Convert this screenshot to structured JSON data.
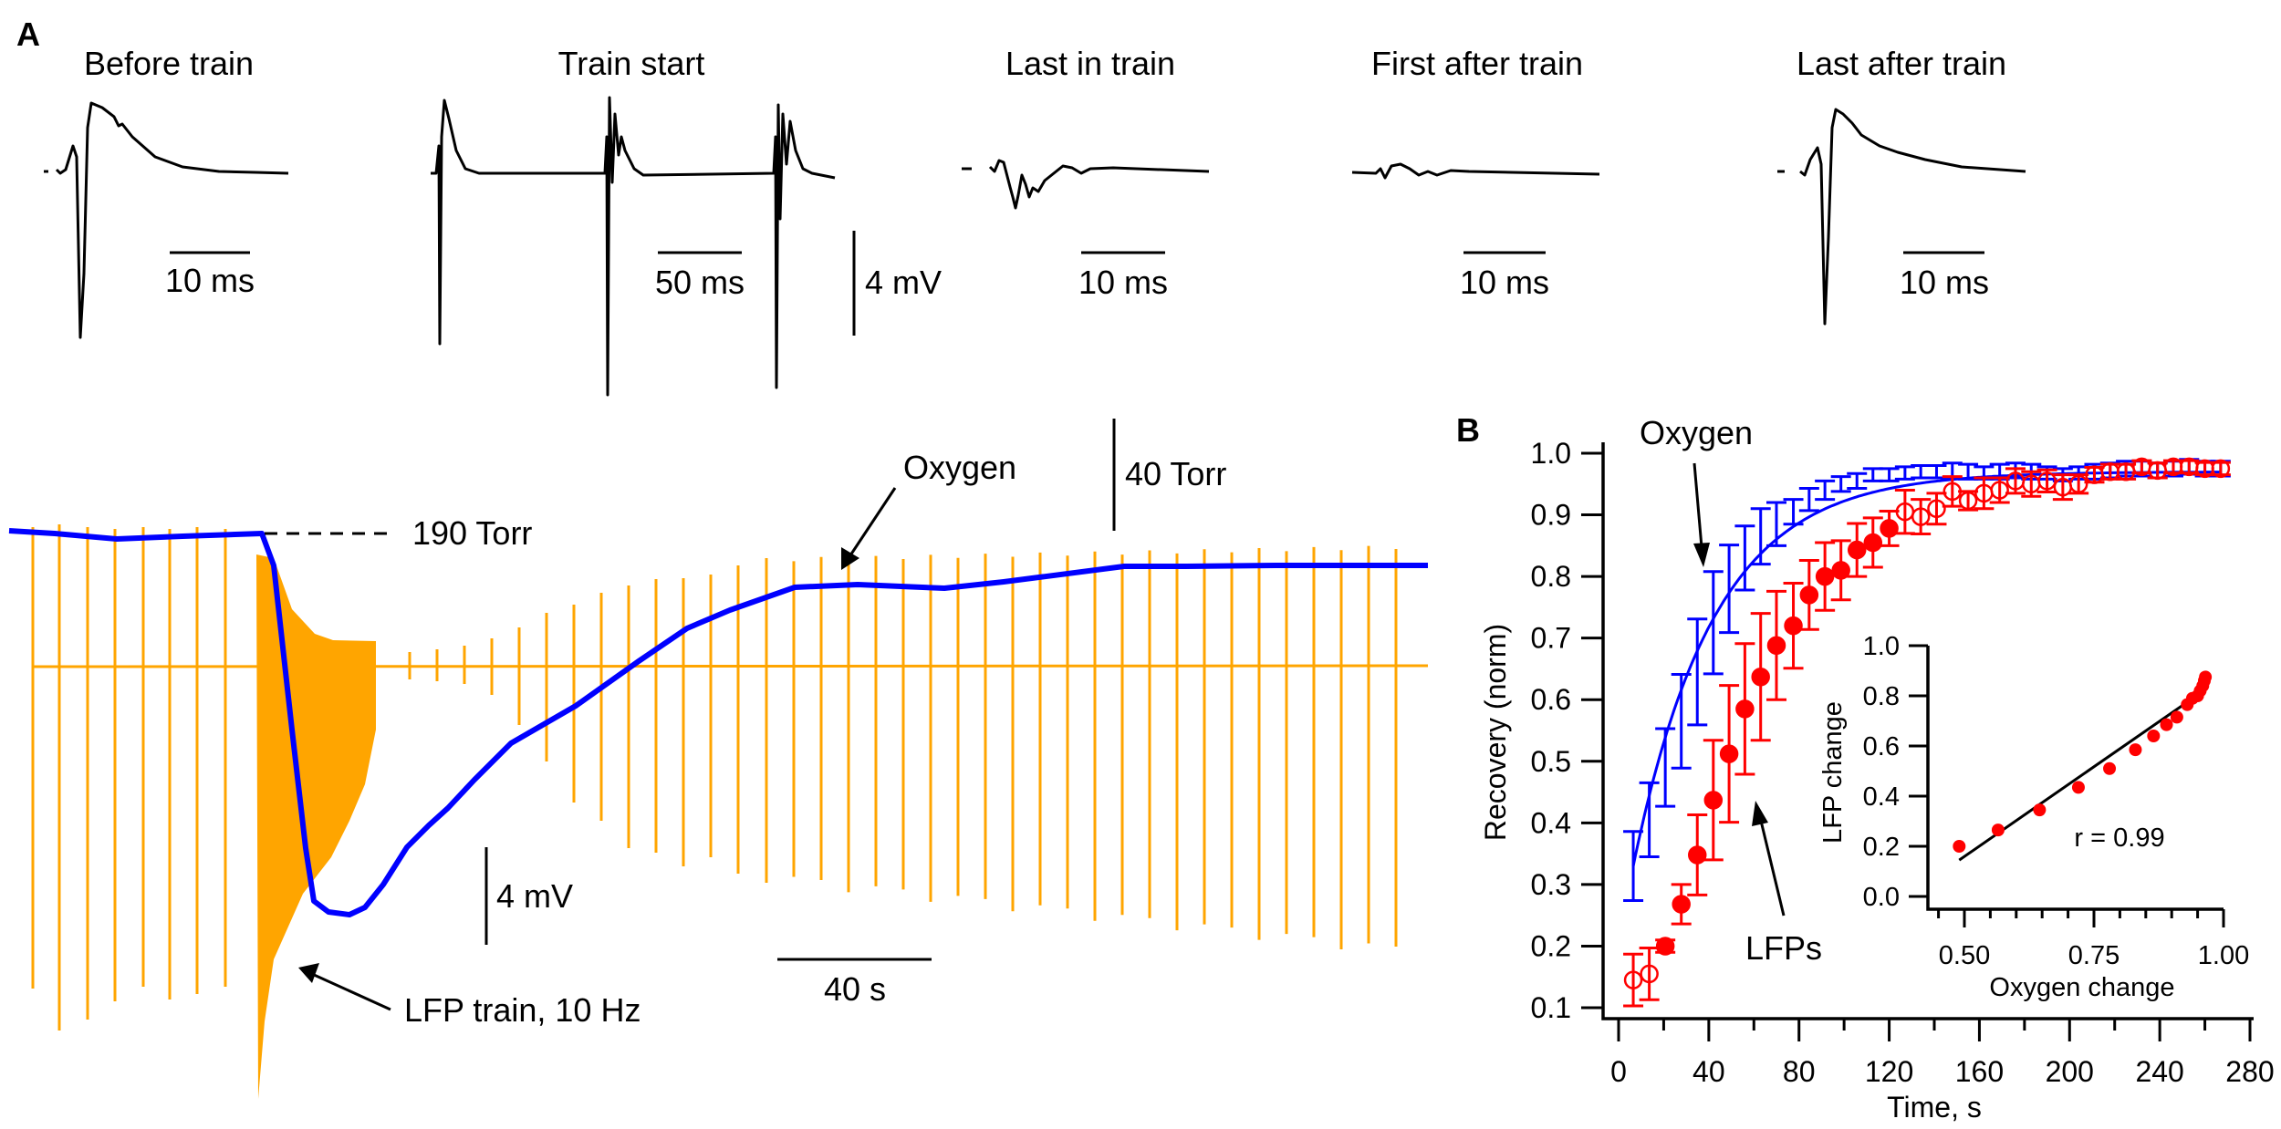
{
  "panel_a": {
    "label": "A",
    "sweeps": [
      {
        "title": "Before train",
        "time_scale": "10 ms"
      },
      {
        "title": "Train start",
        "time_scale": "50 ms"
      },
      {
        "title": "Last in train",
        "time_scale": "10 ms"
      },
      {
        "title": "First after train",
        "time_scale": "10 ms"
      },
      {
        "title": "Last after train",
        "time_scale": "10 ms"
      }
    ],
    "sweep_voltage_scale": "4 mV",
    "recording": {
      "baseline_label": "190 Torr",
      "oxygen_label": "Oxygen",
      "oxygen_scale": "40 Torr",
      "lfp_scale": "4 mV",
      "time_scale": "40 s",
      "train_label": "LFP train, 10 Hz",
      "colors": {
        "lfp": "#FFA500",
        "oxygen": "#0000FF"
      }
    }
  },
  "chart_data": [
    {
      "panel": "B",
      "type": "scatter",
      "xlabel": "Time, s",
      "ylabel": "Recovery (norm)",
      "xlim": [
        0,
        280
      ],
      "ylim": [
        0.1,
        1.0
      ],
      "xticks": [
        "0",
        "40",
        "80",
        "120",
        "160",
        "200",
        "240",
        "280"
      ],
      "yticks": [
        "0.1",
        "0.2",
        "0.3",
        "0.4",
        "0.5",
        "0.6",
        "0.7",
        "0.8",
        "0.9",
        "1.0"
      ],
      "annotations": [
        "Oxygen",
        "LFPs"
      ],
      "grid": false,
      "series": [
        {
          "name": "Oxygen",
          "color": "#0000FF",
          "marker": "error-bar with fitted line",
          "x": [
            6.5,
            13.6,
            20.7,
            27.8,
            34.9,
            42,
            49,
            56,
            63,
            70,
            77.5,
            84.5,
            91.5,
            98.6,
            105.7,
            112.8,
            120,
            127,
            134,
            141,
            148,
            155,
            162,
            169,
            176,
            183,
            190,
            197,
            204,
            211,
            218,
            225,
            232,
            239,
            246,
            253,
            260,
            267
          ],
          "y": [
            0.33,
            0.405,
            0.49,
            0.565,
            0.645,
            0.725,
            0.78,
            0.83,
            0.865,
            0.885,
            0.905,
            0.925,
            0.94,
            0.95,
            0.955,
            0.965,
            0.965,
            0.968,
            0.97,
            0.97,
            0.972,
            0.97,
            0.968,
            0.97,
            0.972,
            0.97,
            0.968,
            0.965,
            0.968,
            0.97,
            0.972,
            0.975,
            0.975,
            0.972,
            0.975,
            0.978,
            0.975,
            0.975
          ],
          "err": [
            0.056,
            0.06,
            0.063,
            0.076,
            0.086,
            0.083,
            0.071,
            0.052,
            0.045,
            0.035,
            0.02,
            0.018,
            0.015,
            0.012,
            0.012,
            0.01,
            0.01,
            0.01,
            0.01,
            0.01,
            0.012,
            0.012,
            0.01,
            0.012,
            0.012,
            0.012,
            0.01,
            0.01,
            0.01,
            0.012,
            0.012,
            0.012,
            0.012,
            0.012,
            0.012,
            0.012,
            0.012,
            0.012
          ]
        },
        {
          "name": "LFPs",
          "color": "#FF0000",
          "x": [
            6.5,
            13.6,
            20.7,
            27.8,
            34.9,
            42,
            49,
            56,
            63,
            70,
            77.5,
            84.5,
            91.5,
            98.6,
            105.7,
            112.8,
            120,
            127,
            134,
            141,
            148,
            155,
            162,
            169,
            176,
            183,
            190,
            197,
            204,
            211,
            218,
            225,
            232,
            239,
            246,
            253,
            260,
            267
          ],
          "y": [
            0.145,
            0.155,
            0.2,
            0.268,
            0.348,
            0.437,
            0.512,
            0.585,
            0.637,
            0.688,
            0.72,
            0.77,
            0.8,
            0.81,
            0.843,
            0.855,
            0.878,
            0.905,
            0.897,
            0.91,
            0.938,
            0.923,
            0.935,
            0.94,
            0.955,
            0.95,
            0.955,
            0.945,
            0.95,
            0.965,
            0.97,
            0.97,
            0.978,
            0.972,
            0.978,
            0.978,
            0.975,
            0.975
          ],
          "err": [
            0.042,
            0.042,
            0.01,
            0.032,
            0.065,
            0.097,
            0.111,
            0.106,
            0.103,
            0.088,
            0.069,
            0.056,
            0.055,
            0.048,
            0.043,
            0.04,
            0.028,
            0.035,
            0.028,
            0.025,
            0.024,
            0.015,
            0.025,
            0.02,
            0.02,
            0.02,
            0.018,
            0.02,
            0.015,
            0.012,
            0.012,
            0.012,
            0.01,
            0.012,
            0.01,
            0.01,
            0.01,
            0.01
          ],
          "filled": [
            false,
            false,
            true,
            true,
            true,
            true,
            true,
            true,
            true,
            true,
            true,
            true,
            true,
            true,
            true,
            true,
            true,
            false,
            false,
            false,
            false,
            false,
            false,
            false,
            false,
            false,
            false,
            false,
            false,
            false,
            false,
            false,
            false,
            false,
            false,
            false,
            false,
            false
          ]
        }
      ]
    },
    {
      "panel": "B-inset",
      "type": "scatter",
      "xlabel": "Oxygen change",
      "ylabel": "LFP change",
      "xlim": [
        0.45,
        1.0
      ],
      "ylim": [
        0.0,
        1.0
      ],
      "xticks": [
        "0.50",
        "0.75",
        "1.00"
      ],
      "yticks": [
        "0.0",
        "0.2",
        "0.4",
        "0.6",
        "0.8",
        "1.0"
      ],
      "annotation": "r = 0.99",
      "points": {
        "color": "#FF0000",
        "x": [
          0.49,
          0.565,
          0.645,
          0.72,
          0.78,
          0.83,
          0.865,
          0.89,
          0.91,
          0.93,
          0.94,
          0.95,
          0.955,
          0.96,
          0.963,
          0.965
        ],
        "y": [
          0.2,
          0.265,
          0.345,
          0.435,
          0.51,
          0.585,
          0.64,
          0.685,
          0.715,
          0.765,
          0.79,
          0.8,
          0.82,
          0.84,
          0.86,
          0.875
        ]
      },
      "fit_line": {
        "x": [
          0.49,
          0.965
        ],
        "y": [
          0.145,
          0.825
        ],
        "color": "#000000"
      }
    }
  ]
}
